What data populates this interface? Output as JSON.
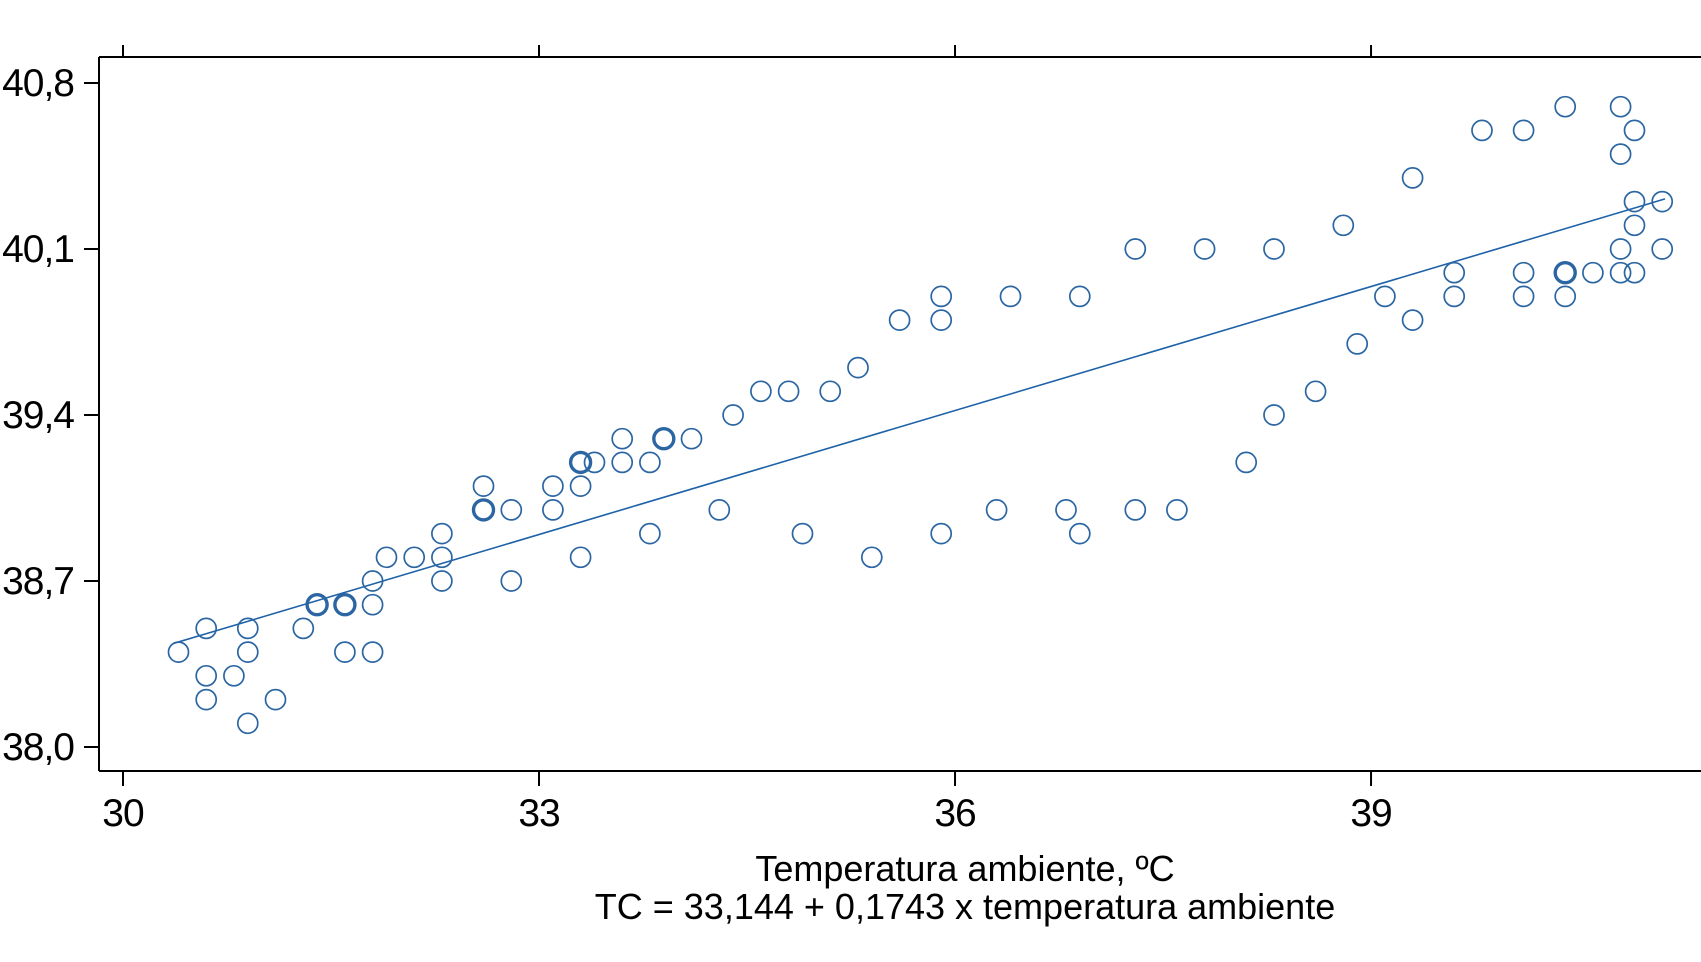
{
  "chart_data": {
    "type": "scatter",
    "title": "",
    "xlabel": "Temperatura ambiente, ºC",
    "ylabel": "",
    "equation_label": "TC = 33,144 + 0,1743 x temperatura ambiente",
    "regression": {
      "intercept": 33.144,
      "slope": 0.1743,
      "x_start": 30.37,
      "x_end": 41.12
    },
    "x_ticks": {
      "values": [
        30,
        33,
        36,
        39
      ],
      "labels": [
        "30",
        "33",
        "36",
        "39"
      ]
    },
    "y_ticks": {
      "values": [
        40.8,
        40.1,
        39.4,
        38.7,
        38.0
      ],
      "labels": [
        "40,8",
        "40,1",
        "39,4",
        "38,7",
        "38,0"
      ]
    },
    "x_range_visible": [
      29.83,
      41.38
    ],
    "y_range_visible": [
      37.9,
      40.91
    ],
    "grid": false,
    "legend": "none",
    "points_format": "[temperatura_ambiente, TC, overplot_count_optional]",
    "series": [
      {
        "name": "TC",
        "points": [
          [
            30.4,
            38.4
          ],
          [
            30.6,
            38.5
          ],
          [
            30.9,
            38.5
          ],
          [
            30.9,
            38.4
          ],
          [
            30.6,
            38.3
          ],
          [
            30.8,
            38.3
          ],
          [
            30.6,
            38.2
          ],
          [
            30.9,
            38.1
          ],
          [
            31.1,
            38.2
          ],
          [
            31.3,
            38.5
          ],
          [
            31.4,
            38.6,
            2
          ],
          [
            31.6,
            38.6,
            2
          ],
          [
            31.8,
            38.6
          ],
          [
            31.8,
            38.7
          ],
          [
            31.9,
            38.8
          ],
          [
            32.1,
            38.8
          ],
          [
            31.6,
            38.4
          ],
          [
            31.8,
            38.4
          ],
          [
            32.3,
            38.9
          ],
          [
            32.3,
            38.8
          ],
          [
            32.3,
            38.7
          ],
          [
            32.6,
            39.1
          ],
          [
            32.6,
            39.0,
            2
          ],
          [
            32.8,
            39.0
          ],
          [
            32.8,
            38.7
          ],
          [
            33.1,
            39.1
          ],
          [
            33.3,
            39.1
          ],
          [
            33.1,
            39.0
          ],
          [
            33.3,
            39.2,
            2
          ],
          [
            33.4,
            39.2
          ],
          [
            33.6,
            39.3
          ],
          [
            33.6,
            39.2
          ],
          [
            33.8,
            39.2
          ],
          [
            33.9,
            39.3,
            2
          ],
          [
            34.1,
            39.3
          ],
          [
            34.4,
            39.4
          ],
          [
            34.6,
            39.5
          ],
          [
            34.8,
            39.5
          ],
          [
            35.1,
            39.5
          ],
          [
            35.3,
            39.6
          ],
          [
            33.3,
            38.8
          ],
          [
            33.8,
            38.9
          ],
          [
            34.3,
            39.0
          ],
          [
            34.9,
            38.9
          ],
          [
            35.4,
            38.8
          ],
          [
            35.9,
            38.9
          ],
          [
            35.6,
            39.8
          ],
          [
            35.9,
            39.9
          ],
          [
            35.9,
            39.8
          ],
          [
            36.4,
            39.9
          ],
          [
            36.9,
            39.9
          ],
          [
            37.3,
            40.1
          ],
          [
            37.8,
            40.1
          ],
          [
            38.3,
            40.1
          ],
          [
            38.8,
            40.2
          ],
          [
            36.3,
            39.0
          ],
          [
            36.8,
            39.0
          ],
          [
            36.9,
            38.9
          ],
          [
            37.3,
            39.0
          ],
          [
            37.6,
            39.0
          ],
          [
            38.1,
            39.2
          ],
          [
            38.3,
            39.4
          ],
          [
            38.6,
            39.5
          ],
          [
            38.9,
            39.7
          ],
          [
            39.1,
            39.9
          ],
          [
            39.3,
            39.8
          ],
          [
            39.3,
            40.4
          ],
          [
            39.8,
            40.6
          ],
          [
            40.1,
            40.6
          ],
          [
            40.4,
            40.7
          ],
          [
            40.8,
            40.7
          ],
          [
            40.9,
            40.6
          ],
          [
            40.8,
            40.5
          ],
          [
            40.9,
            40.3
          ],
          [
            41.1,
            40.3
          ],
          [
            40.9,
            40.2
          ],
          [
            40.8,
            40.1
          ],
          [
            41.1,
            40.1
          ],
          [
            39.6,
            40.0
          ],
          [
            40.1,
            40.0
          ],
          [
            40.4,
            40.0,
            2
          ],
          [
            40.6,
            40.0
          ],
          [
            40.8,
            40.0
          ],
          [
            40.9,
            40.0
          ],
          [
            39.6,
            39.9
          ],
          [
            40.1,
            39.9
          ],
          [
            40.4,
            39.9
          ]
        ]
      }
    ],
    "colors": {
      "point": "#2b66a3",
      "line": "#1e62a8",
      "axis": "#000000",
      "text": "#000000",
      "background": "#ffffff"
    }
  }
}
